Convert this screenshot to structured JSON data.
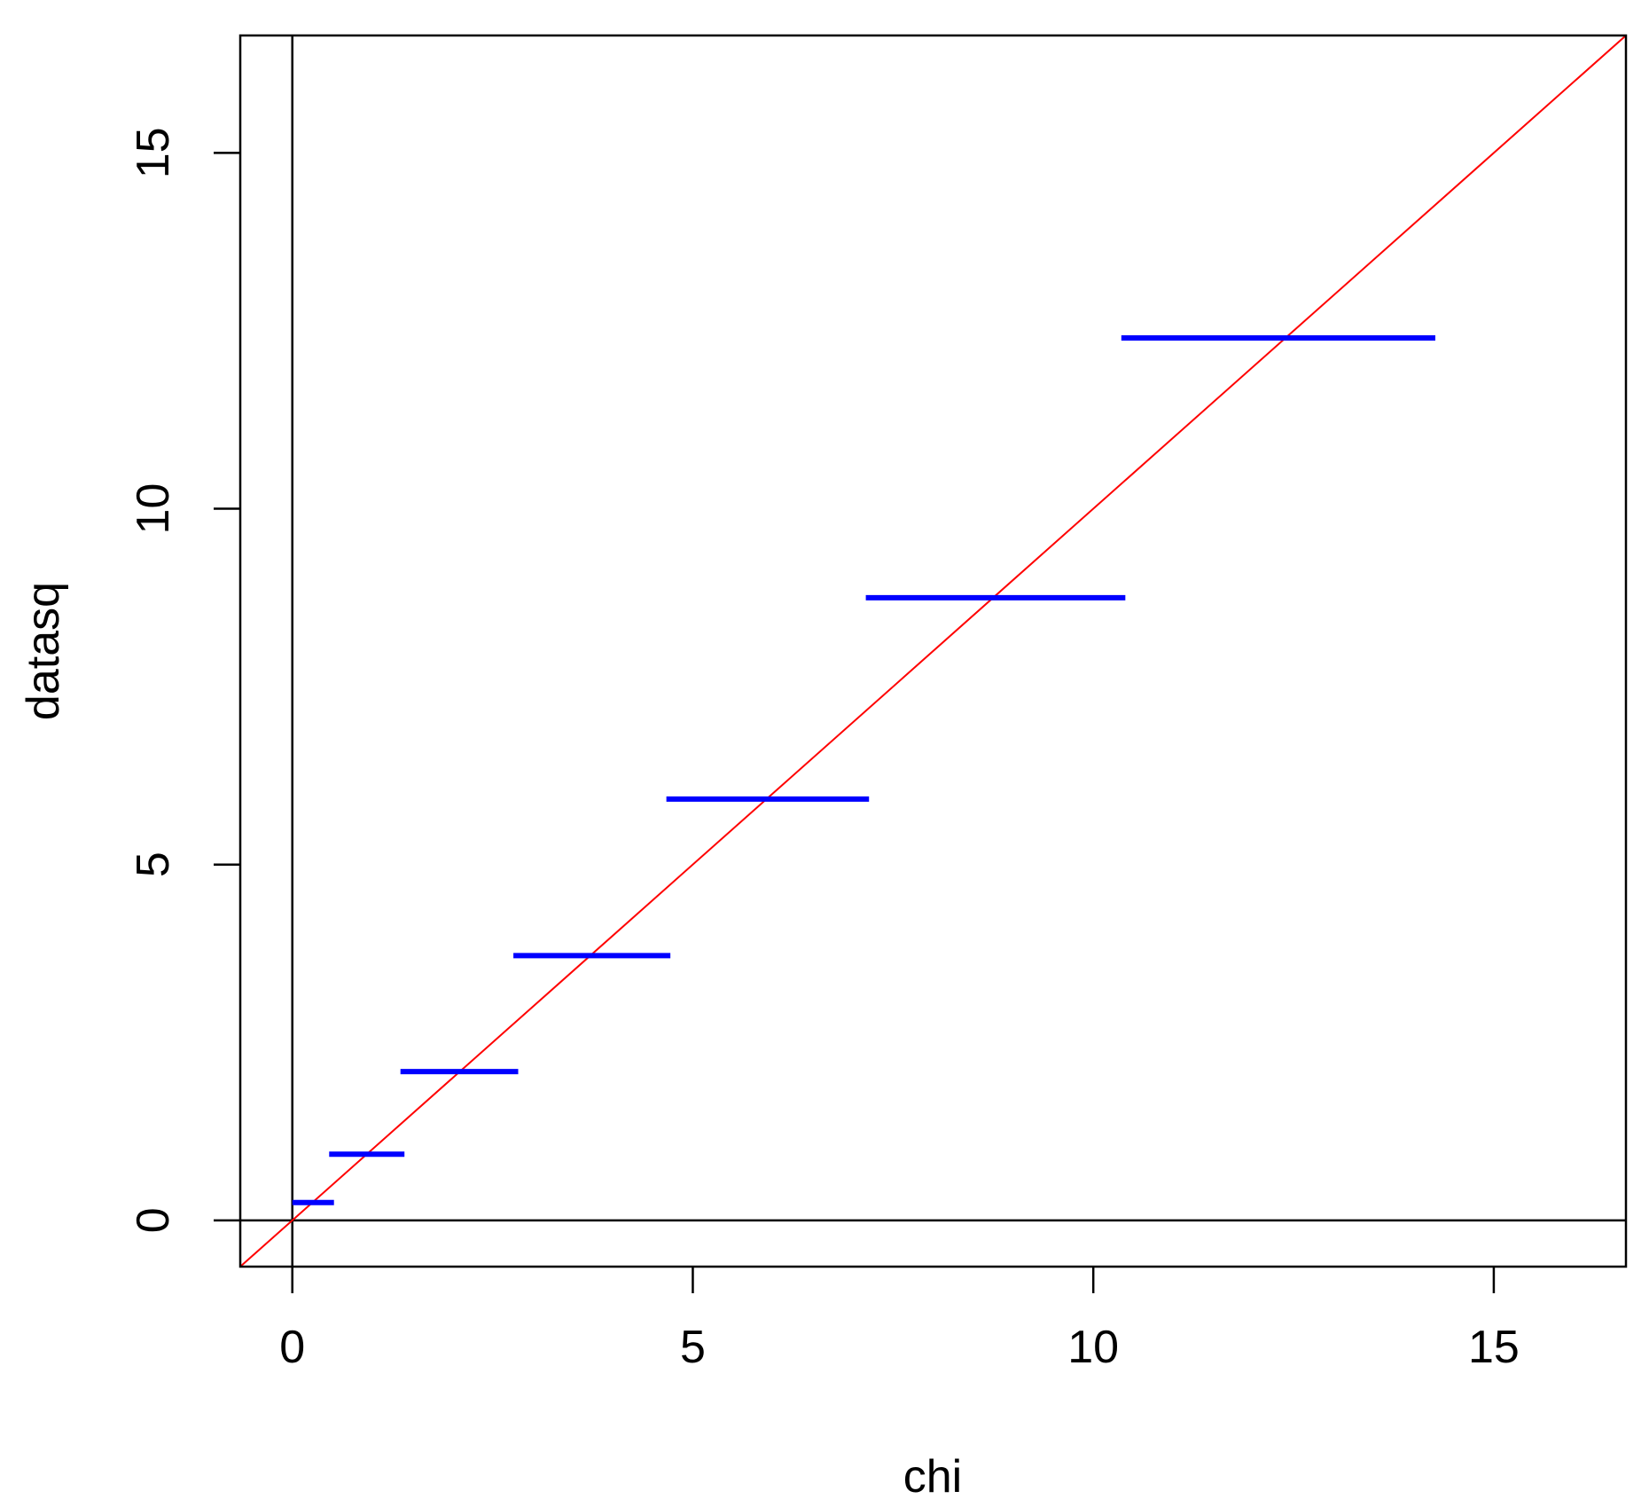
{
  "chart_data": {
    "type": "line",
    "title": "",
    "xlabel": "chi",
    "ylabel": "datasq",
    "xlim": [
      -0.65,
      16.65
    ],
    "ylim": [
      -0.65,
      16.65
    ],
    "x_ticks": [
      0,
      5,
      10,
      15
    ],
    "y_ticks": [
      0,
      5,
      10,
      15
    ],
    "x_tick_labels": [
      "0",
      "5",
      "10",
      "15"
    ],
    "y_tick_labels": [
      "0",
      "5",
      "10",
      "15"
    ],
    "grid": false,
    "reference_lines": {
      "vertical_x": 0,
      "horizontal_y": 0,
      "color": "#000000"
    },
    "diagonal": {
      "type": "y=x",
      "color": "#ff0000"
    },
    "series": [
      {
        "type": "segments",
        "color": "#0000ff",
        "segments": [
          {
            "x0": 0.0,
            "x1": 0.52,
            "y": 0.25
          },
          {
            "x0": 0.46,
            "x1": 1.4,
            "y": 0.93
          },
          {
            "x0": 1.35,
            "x1": 2.82,
            "y": 2.09
          },
          {
            "x0": 2.76,
            "x1": 4.72,
            "y": 3.72
          },
          {
            "x0": 4.67,
            "x1": 7.2,
            "y": 5.92
          },
          {
            "x0": 7.16,
            "x1": 10.4,
            "y": 8.75
          },
          {
            "x0": 10.35,
            "x1": 14.27,
            "y": 12.4
          }
        ]
      }
    ]
  },
  "colors": {
    "background": "#ffffff",
    "frame": "#000000",
    "segment": "#0000ff",
    "diagonal": "#ff0000"
  }
}
